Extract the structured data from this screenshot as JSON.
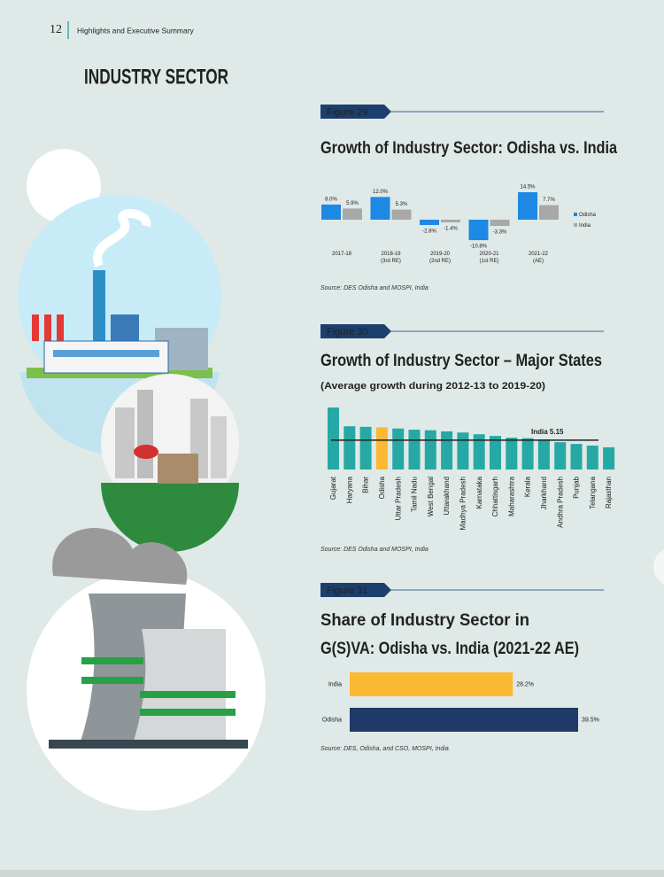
{
  "header": {
    "page_number": "12",
    "section": "Highlights and Executive Summary"
  },
  "heading": "INDUSTRY SECTOR",
  "chart_data": [
    {
      "type": "bar",
      "figure": "Figure 29",
      "title": "Growth of Industry Sector: Odisha vs. India",
      "categories": [
        "2017-18",
        "2018-19\n(3rd RE)",
        "2019-20\n(2nd RE)",
        "2020-21\n(1st RE)",
        "2021-22\n(AE)"
      ],
      "series": [
        {
          "name": "Odisha",
          "color": "#1e88e5",
          "values": [
            8.0,
            12.0,
            -2.8,
            -10.8,
            14.5
          ],
          "value_labels": [
            "8.0%",
            "12.0%",
            "-2.8%",
            "-10.8%",
            "14.5%"
          ]
        },
        {
          "name": "India",
          "color": "#a8a8a8",
          "values": [
            5.9,
            5.3,
            -1.4,
            -3.3,
            7.7
          ],
          "value_labels": [
            "5.9%",
            "5.3%",
            "-1.4%",
            "-3.3%",
            "7.7%"
          ]
        }
      ],
      "legend": "right",
      "source": "Source: DES Odisha and MOSPI, India"
    },
    {
      "type": "bar",
      "figure": "Figure 30",
      "title": "Growth of Industry Sector – Major States",
      "subtitle": "(Average growth during 2012-13 to 2019-20)",
      "categories": [
        "Gujarat",
        "Haryana",
        "Bihar",
        "Odisha",
        "Uttar Pradesh",
        "Tamil Nadu",
        "West Bengal",
        "Uttarakhand",
        "Madhya Pradesh",
        "Karnataka",
        "Chhattisgarh",
        "Maharashtra",
        "Kerala",
        "Jharkhand",
        "Andhra Pradesh",
        "Punjab",
        "Telangana",
        "Rajasthan"
      ],
      "values": [
        10.9,
        7.6,
        7.5,
        7.4,
        7.2,
        7.0,
        6.9,
        6.7,
        6.5,
        6.2,
        5.9,
        5.6,
        5.5,
        5.3,
        4.8,
        4.5,
        4.2,
        3.9
      ],
      "colors": [
        "#26a9a5",
        "#26a9a5",
        "#26a9a5",
        "#f9b931",
        "#26a9a5",
        "#26a9a5",
        "#26a9a5",
        "#26a9a5",
        "#26a9a5",
        "#26a9a5",
        "#26a9a5",
        "#26a9a5",
        "#26a9a5",
        "#26a9a5",
        "#26a9a5",
        "#26a9a5",
        "#26a9a5",
        "#26a9a5"
      ],
      "reference_line": {
        "value": 5.15,
        "label": "India 5.15"
      },
      "source": "Source: DES Odisha and MOSPI, India"
    },
    {
      "type": "barh",
      "figure": "Figure 31",
      "title_lines": [
        "Share of Industry Sector in",
        "G(S)VA: Odisha vs. India (2021-22 AE)"
      ],
      "categories": [
        "India",
        "Odisha"
      ],
      "values": [
        28.2,
        39.5
      ],
      "value_labels": [
        "28.2%",
        "39.5%"
      ],
      "colors": [
        "#fbb832",
        "#1f3a68"
      ],
      "source": "Source: DES, Odisha, and CSO, MOSPI, India"
    }
  ]
}
